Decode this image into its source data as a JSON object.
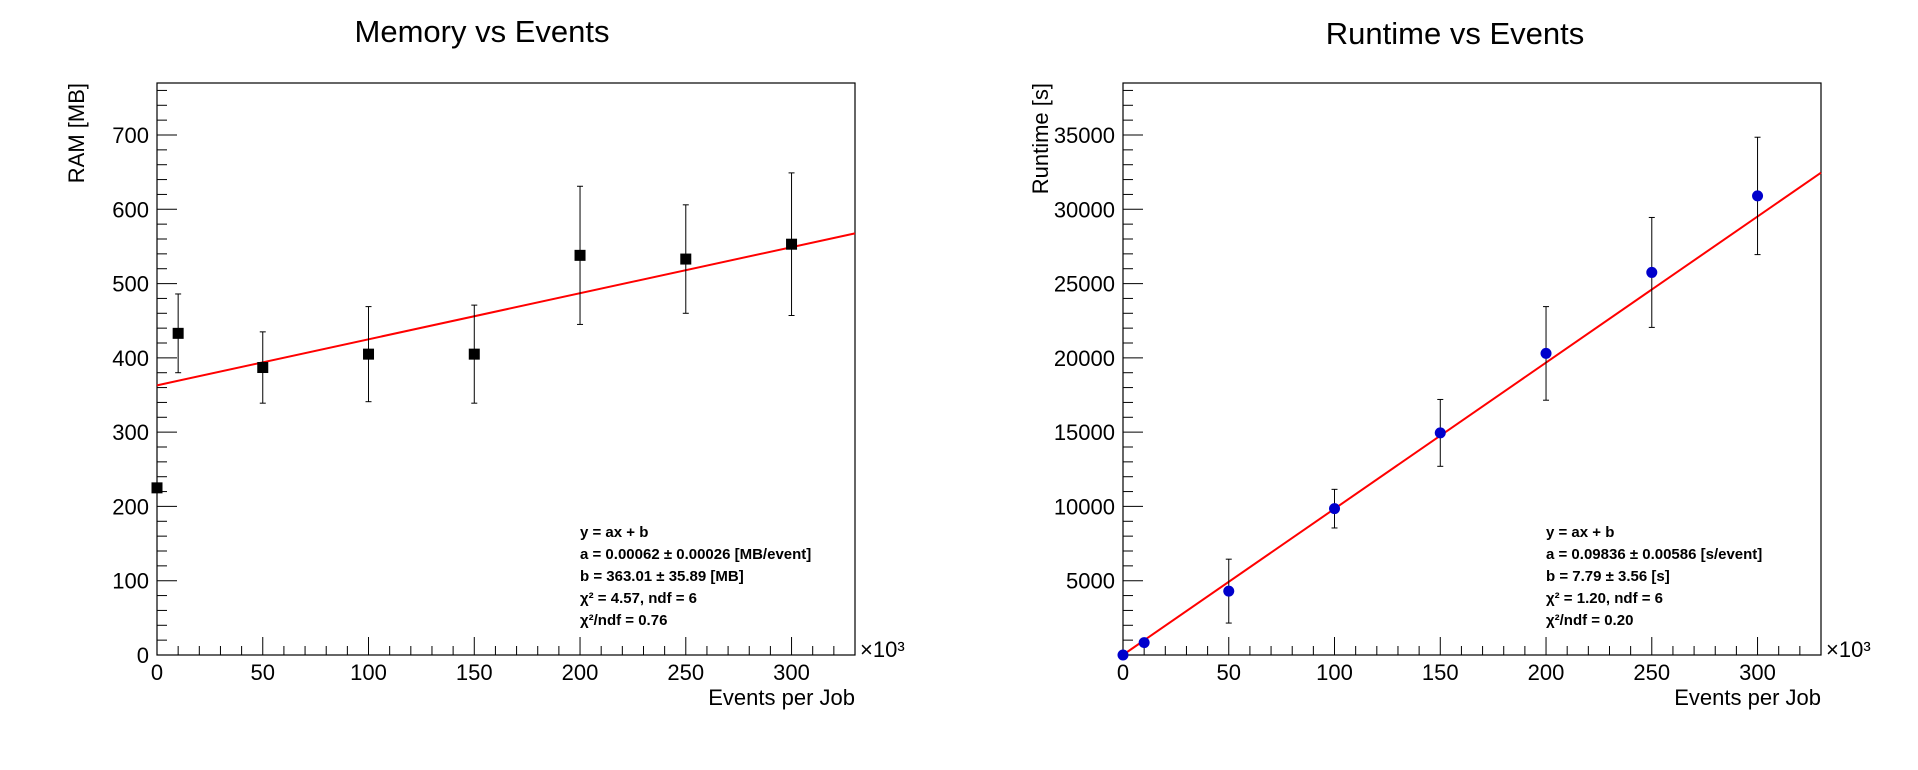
{
  "chart_data": [
    {
      "type": "scatter",
      "title": "Memory vs Events",
      "xlabel": "Events per Job",
      "ylabel": "RAM [MB]",
      "x_multiplier_label": "×10³",
      "xlim": [
        0,
        330
      ],
      "ylim": [
        0,
        770
      ],
      "x_ticks": [
        0,
        50,
        100,
        150,
        200,
        250,
        300
      ],
      "y_ticks": [
        0,
        100,
        200,
        300,
        400,
        500,
        600,
        700
      ],
      "marker": "square",
      "marker_color": "#000000",
      "fit_color": "#ff0000",
      "points": [
        {
          "x": 0,
          "y": 225,
          "err": null
        },
        {
          "x": 10,
          "y": 433,
          "err": 53
        },
        {
          "x": 50,
          "y": 387,
          "err": 48
        },
        {
          "x": 100,
          "y": 405,
          "err": 64
        },
        {
          "x": 150,
          "y": 405,
          "err": 66
        },
        {
          "x": 200,
          "y": 538,
          "err": 93
        },
        {
          "x": 250,
          "y": 533,
          "err": 73
        },
        {
          "x": 300,
          "y": 553,
          "err": 96
        }
      ],
      "fit": {
        "a": 0.62,
        "b": 363.01
      },
      "stats": [
        "y = ax + b",
        "a = 0.00062 ± 0.00026 [MB/event]",
        "b = 363.01 ± 35.89 [MB]",
        "χ² = 4.57, ndf = 6",
        "χ²/ndf = 0.76"
      ]
    },
    {
      "type": "scatter",
      "title": "Runtime vs Events",
      "xlabel": "Events per Job",
      "ylabel": "Runtime [s]",
      "x_multiplier_label": "×10³",
      "xlim": [
        0,
        330
      ],
      "ylim": [
        0,
        38500
      ],
      "x_ticks": [
        0,
        50,
        100,
        150,
        200,
        250,
        300
      ],
      "y_ticks": [
        5000,
        10000,
        15000,
        20000,
        25000,
        30000,
        35000
      ],
      "marker": "circle",
      "marker_color": "#0000cc",
      "fit_color": "#ff0000",
      "points": [
        {
          "x": 0,
          "y": 0,
          "err": null
        },
        {
          "x": 10,
          "y": 830,
          "err": null
        },
        {
          "x": 50,
          "y": 4300,
          "err": 2150
        },
        {
          "x": 100,
          "y": 9850,
          "err": 1300
        },
        {
          "x": 150,
          "y": 14950,
          "err": 2250
        },
        {
          "x": 200,
          "y": 20300,
          "err": 3150
        },
        {
          "x": 250,
          "y": 25750,
          "err": 3700
        },
        {
          "x": 300,
          "y": 30900,
          "err": 3950
        }
      ],
      "fit": {
        "a": 98.36,
        "b": 7.79
      },
      "stats": [
        "y = ax + b",
        "a = 0.09836 ± 0.00586 [s/event]",
        "b = 7.79 ± 3.56 [s]",
        "χ² = 1.20,  ndf = 6",
        "χ²/ndf = 0.20"
      ]
    }
  ]
}
